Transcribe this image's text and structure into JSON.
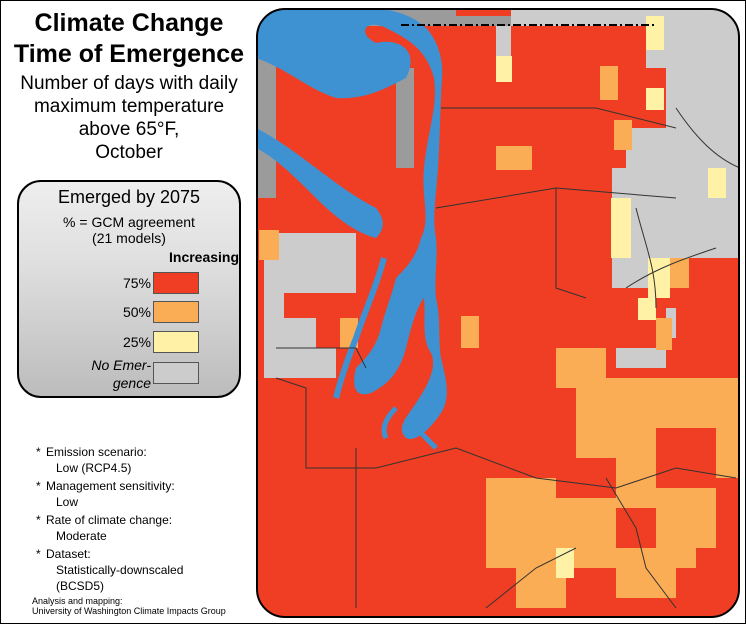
{
  "title": {
    "line1": "Climate Change",
    "line2": "Time of Emergence"
  },
  "subtitle": {
    "line1": "Number of days with daily",
    "line2": "maximum temperature",
    "line3": "above 65°F,",
    "line4": "October"
  },
  "legend": {
    "title": "Emerged by 2075",
    "sub1": "% = GCM agreement",
    "sub2": "(21 models)",
    "increasing": "Increasing",
    "items": [
      {
        "label": "75%",
        "color": "#ef3e23"
      },
      {
        "label": "50%",
        "color": "#fbad55"
      },
      {
        "label": "25%",
        "color": "#fff1a6"
      },
      {
        "label": "No Emer-gence",
        "label_line1": "No Emer-",
        "label_line2": "gence",
        "color": "#cccccc"
      }
    ]
  },
  "notes": [
    {
      "head": "Emission scenario:",
      "body": "Low (RCP4.5)"
    },
    {
      "head": "Management sensitivity:",
      "body": "Low"
    },
    {
      "head": "Rate of climate change:",
      "body": "Moderate"
    },
    {
      "head": "Dataset:",
      "body1": "Statistically-downscaled",
      "body2": "(BCSD5)"
    }
  ],
  "credit": {
    "line1": "Analysis and mapping:",
    "line2": "University of Washington Climate Impacts Group"
  },
  "map_colors": {
    "red": "#ef3e23",
    "orange": "#fbad55",
    "yellow": "#fff1a6",
    "gray": "#cccccc",
    "dark_gray": "#9b9b9b",
    "water": "#3f92d2"
  }
}
